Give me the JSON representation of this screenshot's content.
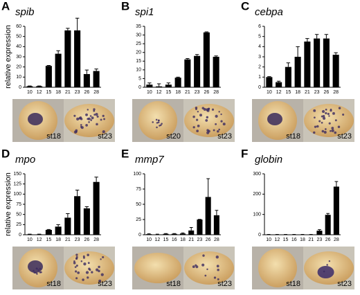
{
  "chart_data": [
    {
      "type": "bar",
      "panel": "A",
      "title": "spib",
      "ylabel": "relative expression",
      "color": "#000000",
      "categories": [
        "10",
        "12",
        "15",
        "18",
        "21",
        "23",
        "26",
        "28"
      ],
      "values": [
        1,
        1,
        21,
        33,
        56,
        56,
        13,
        16
      ],
      "errors": [
        0.3,
        0.3,
        0.5,
        3,
        2,
        12,
        4,
        2
      ],
      "ylim": [
        0,
        60
      ],
      "yticks": [
        0,
        10,
        20,
        30,
        40,
        50,
        60
      ],
      "image_labels": [
        "st18",
        "st23"
      ]
    },
    {
      "type": "bar",
      "panel": "B",
      "title": "spi1",
      "color": "#000000",
      "categories": [
        "10",
        "12",
        "15",
        "18",
        "21",
        "23",
        "26",
        "28"
      ],
      "values": [
        1.5,
        0.5,
        1.5,
        5.5,
        16,
        18,
        31.5,
        17.5
      ],
      "errors": [
        1,
        1.5,
        1,
        0.3,
        0.5,
        0.8,
        0.3,
        0.5
      ],
      "ylim": [
        0,
        35
      ],
      "yticks": [
        0,
        5,
        10,
        15,
        20,
        25,
        30,
        35
      ],
      "image_labels": [
        "st20",
        "st23"
      ]
    },
    {
      "type": "bar",
      "panel": "C",
      "title": "cebpa",
      "color": "#000000",
      "categories": [
        "10",
        "12",
        "15",
        "18",
        "21",
        "23",
        "26",
        "28"
      ],
      "values": [
        1,
        0.5,
        2,
        3,
        4.5,
        4.8,
        4.8,
        3.2
      ],
      "errors": [
        0.05,
        0.1,
        0.4,
        1,
        0.3,
        0.4,
        0.4,
        0.2
      ],
      "ylim": [
        0,
        6
      ],
      "yticks": [
        0,
        1,
        2,
        3,
        4,
        5,
        6
      ],
      "image_labels": [
        "st18",
        "st23"
      ]
    },
    {
      "type": "bar",
      "panel": "D",
      "title": "mpo",
      "ylabel": "relative expression",
      "color": "#000000",
      "categories": [
        "10",
        "12",
        "15",
        "18",
        "21",
        "23",
        "26",
        "28"
      ],
      "values": [
        1,
        1,
        12,
        20,
        42,
        95,
        65,
        130
      ],
      "errors": [
        0.5,
        0.5,
        1,
        5,
        10,
        15,
        4,
        12
      ],
      "ylim": [
        0,
        150
      ],
      "yticks": [
        0,
        25,
        50,
        75,
        100,
        125,
        150
      ],
      "image_labels": [
        "st18",
        "st23"
      ]
    },
    {
      "type": "bar",
      "panel": "E",
      "title": "mmp7",
      "color": "#000000",
      "categories": [
        "10",
        "12",
        "15",
        "16",
        "18",
        "21",
        "23",
        "26",
        "28"
      ],
      "values": [
        1,
        0.5,
        1.5,
        1.5,
        2,
        7,
        25,
        62,
        32
      ],
      "errors": [
        0.5,
        0.5,
        0.5,
        0.5,
        1,
        5,
        0.3,
        30,
        8
      ],
      "ylim": [
        0,
        100
      ],
      "yticks": [
        0,
        25,
        50,
        75,
        100
      ],
      "image_labels": [
        "st18",
        "st23"
      ]
    },
    {
      "type": "bar",
      "panel": "F",
      "title": "globin",
      "color": "#000000",
      "categories": [
        "10",
        "12",
        "15",
        "16",
        "18",
        "21",
        "23",
        "26",
        "28"
      ],
      "values": [
        1,
        1,
        1,
        1,
        1,
        1,
        20,
        98,
        237
      ],
      "errors": [
        0.5,
        0.5,
        0.5,
        0.5,
        0.5,
        0.5,
        5,
        7,
        25
      ],
      "ylim": [
        0,
        300
      ],
      "yticks": [
        0,
        100,
        200,
        300
      ],
      "image_labels": [
        "st18",
        "st23"
      ]
    }
  ]
}
